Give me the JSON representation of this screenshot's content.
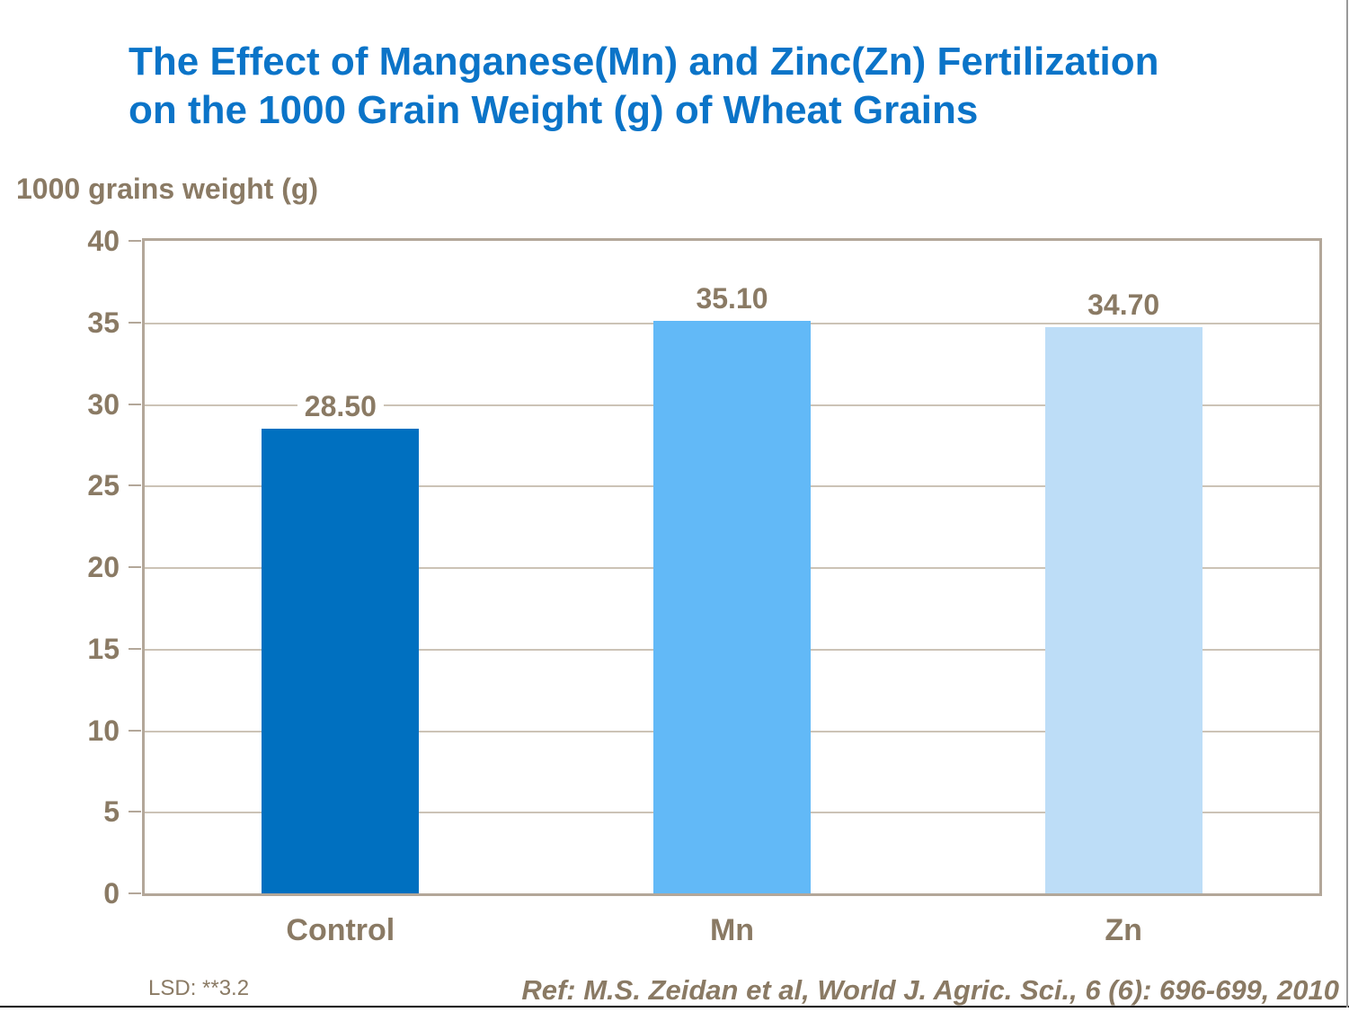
{
  "title": {
    "line1": "The Effect of Manganese(Mn) and Zinc(Zn) Fertilization",
    "line2": "on the 1000 Grain Weight (g) of Wheat Grains",
    "color": "#0B74C8"
  },
  "notes": {
    "lsd": "LSD: **3.2",
    "ref": "Ref: M.S. Zeidan et al, World J. Agric. Sci., 6 (6): 696-699, 2010"
  },
  "colors": {
    "text_brown": "#8A7A64",
    "plot_border": "#B3A799",
    "gridline": "#CCC3B6",
    "bottom_rule": "#000000",
    "right_edge": "#999999"
  },
  "chart_data": {
    "type": "bar",
    "title": "The Effect of Manganese(Mn) and Zinc(Zn) Fertilization on the 1000 Grain Weight (g) of Wheat Grains",
    "xlabel": "",
    "ylabel": "1000 grains weight (g)",
    "categories": [
      "Control",
      "Mn",
      "Zn"
    ],
    "values": [
      28.5,
      35.1,
      34.7
    ],
    "value_labels": [
      "28.50",
      "35.10",
      "34.70"
    ],
    "bar_colors": [
      "#0070C0",
      "#62B9F7",
      "#BDDDF7"
    ],
    "ylim": [
      0,
      40
    ],
    "yticks": [
      0,
      5,
      10,
      15,
      20,
      25,
      30,
      35,
      40
    ],
    "grid": true,
    "legend": "none"
  }
}
